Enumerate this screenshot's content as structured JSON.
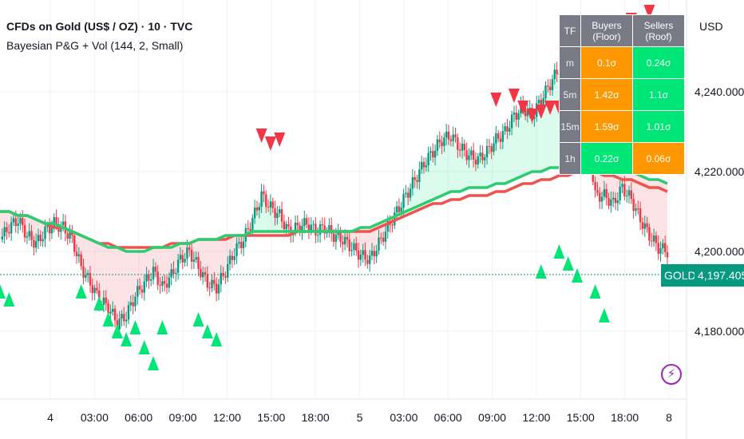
{
  "header": {
    "symbol_title": "CFDs on Gold (US$ / OZ) · 10 · TVC",
    "indicator": "Bayesian P&G + Vol (144, 2, Small)",
    "currency": "USD"
  },
  "colors": {
    "up": "#089981",
    "down": "#f23645",
    "buyers": "#ff9800",
    "sellers": "#00e676",
    "fast_line": "#2ecc71",
    "slow_line": "#ef5350",
    "grid": "#f0f3fa"
  },
  "last_price": {
    "symbol": "GOLD",
    "value": "4,197.405"
  },
  "table": {
    "headers": [
      "TF",
      "Buyers (Floor)",
      "Sellers (Roof)"
    ],
    "rows": [
      {
        "tf": "m",
        "buyers": "0.1σ",
        "sellers": "0.24σ",
        "buyers_color": "#ff9800",
        "sellers_color": "#00e676"
      },
      {
        "tf": "5m",
        "buyers": "1.42σ",
        "sellers": "1.1σ",
        "buyers_color": "#ff9800",
        "sellers_color": "#00e676"
      },
      {
        "tf": "15m",
        "buyers": "1.59σ",
        "sellers": "1.01σ",
        "buyers_color": "#ff9800",
        "sellers_color": "#00e676"
      },
      {
        "tf": "1h",
        "buyers": "0.22σ",
        "sellers": "0.06σ",
        "buyers_color": "#00e676",
        "sellers_color": "#ff9800"
      }
    ]
  },
  "chart_data": {
    "type": "line",
    "y_ticks": [
      "4,240.000",
      "4,220.000",
      "4,200.000",
      "4,180.000"
    ],
    "y_tick_values": [
      4240,
      4220,
      4200,
      4180
    ],
    "x_ticks": [
      "4",
      "03:00",
      "06:00",
      "09:00",
      "12:00",
      "15:00",
      "18:00",
      "5",
      "03:00",
      "06:00",
      "09:00",
      "12:00",
      "15:00",
      "18:00",
      "8"
    ],
    "ylim": [
      4163,
      4263
    ],
    "last_price": 4197.405,
    "price": [
      4203,
      4206,
      4208,
      4204,
      4202,
      4205,
      4207,
      4206,
      4203,
      4196,
      4192,
      4188,
      4186,
      4182,
      4184,
      4189,
      4192,
      4195,
      4191,
      4194,
      4198,
      4200,
      4196,
      4192,
      4191,
      4195,
      4200,
      4203,
      4208,
      4214,
      4211,
      4209,
      4205,
      4206,
      4207,
      4205,
      4206,
      4204,
      4203,
      4201,
      4199,
      4198,
      4202,
      4206,
      4210,
      4214,
      4218,
      4222,
      4225,
      4228,
      4229,
      4226,
      4224,
      4223,
      4225,
      4228,
      4230,
      4234,
      4236,
      4234,
      4238,
      4242,
      4246,
      4249,
      4251,
      4232,
      4214,
      4214,
      4212,
      4216,
      4213,
      4208,
      4204,
      4201,
      4200
    ],
    "fast_line": [
      4210,
      4210,
      4209,
      4209,
      4208,
      4207,
      4207,
      4206,
      4205,
      4204,
      4203,
      4202,
      4201,
      4201,
      4200,
      4200,
      4200,
      4201,
      4201,
      4201,
      4202,
      4202,
      4203,
      4203,
      4203,
      4204,
      4204,
      4204,
      4205,
      4205,
      4205,
      4205,
      4205,
      4205,
      4205,
      4205,
      4205,
      4205,
      4205,
      4205,
      4206,
      4206,
      4207,
      4208,
      4209,
      4210,
      4211,
      4212,
      4213,
      4214,
      4215,
      4215,
      4216,
      4216,
      4216,
      4217,
      4217,
      4218,
      4219,
      4220,
      4220,
      4221,
      4221,
      4222,
      4223,
      4222,
      4222,
      4222,
      4221,
      4221,
      4220,
      4219,
      4218,
      4218,
      4217
    ],
    "slow_line": [
      4210,
      4210,
      4209,
      4209,
      4208,
      4207,
      4206,
      4206,
      4205,
      4204,
      4203,
      4202,
      4202,
      4201,
      4201,
      4201,
      4201,
      4201,
      4201,
      4202,
      4202,
      4202,
      4203,
      4203,
      4203,
      4203,
      4204,
      4204,
      4204,
      4204,
      4204,
      4204,
      4204,
      4205,
      4205,
      4205,
      4205,
      4205,
      4205,
      4205,
      4205,
      4205,
      4206,
      4207,
      4208,
      4209,
      4210,
      4211,
      4212,
      4212,
      4213,
      4213,
      4214,
      4214,
      4214,
      4215,
      4215,
      4216,
      4217,
      4217,
      4218,
      4218,
      4219,
      4219,
      4220,
      4220,
      4220,
      4219,
      4219,
      4218,
      4218,
      4217,
      4216,
      4216,
      4215
    ],
    "sell_signals": [
      [
        29,
        4229
      ],
      [
        30,
        4227
      ],
      [
        31,
        4228
      ],
      [
        55,
        4238
      ],
      [
        57,
        4239
      ],
      [
        58,
        4236
      ],
      [
        59,
        4234
      ],
      [
        60,
        4235
      ],
      [
        61,
        4236
      ],
      [
        62,
        4236
      ],
      [
        64,
        4240
      ],
      [
        66,
        4248
      ],
      [
        68,
        4252
      ],
      [
        70,
        4258
      ],
      [
        71,
        4254
      ],
      [
        72,
        4260
      ]
    ],
    "buy_signals": [
      [
        0,
        4190
      ],
      [
        1,
        4188
      ],
      [
        9,
        4190
      ],
      [
        11,
        4187
      ],
      [
        12,
        4183
      ],
      [
        13,
        4180
      ],
      [
        14,
        4178
      ],
      [
        15,
        4181
      ],
      [
        16,
        4176
      ],
      [
        17,
        4172
      ],
      [
        18,
        4181
      ],
      [
        22,
        4183
      ],
      [
        23,
        4180
      ],
      [
        24,
        4178
      ],
      [
        60,
        4195
      ],
      [
        62,
        4200
      ],
      [
        63,
        4197
      ],
      [
        64,
        4194
      ],
      [
        66,
        4190
      ],
      [
        67,
        4184
      ]
    ]
  }
}
